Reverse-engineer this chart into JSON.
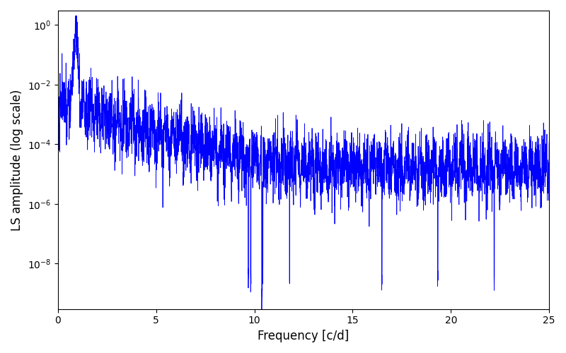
{
  "title": "",
  "xlabel": "Frequency [c/d]",
  "ylabel": "LS amplitude (log scale)",
  "xlim": [
    0,
    25
  ],
  "ylim": [
    3e-10,
    3.0
  ],
  "line_color": "#0000ff",
  "line_width": 0.6,
  "yticks": [
    1.0,
    0.01,
    0.0001,
    1e-06,
    1e-08
  ],
  "xticks": [
    0,
    5,
    10,
    15,
    20,
    25
  ],
  "figsize": [
    8.0,
    5.0
  ],
  "dpi": 100,
  "seed": 42,
  "n_points": 4000,
  "freq_max": 25.0,
  "background_color": "#ffffff"
}
